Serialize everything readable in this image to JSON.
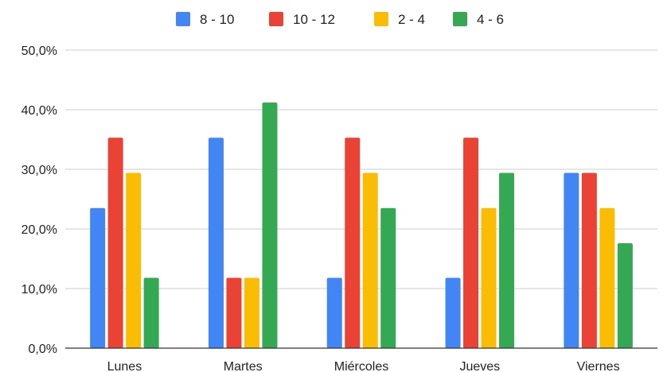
{
  "chart_data": {
    "type": "bar",
    "categories": [
      "Lunes",
      "Martes",
      "Miércoles",
      "Jueves",
      "Viernes"
    ],
    "series": [
      {
        "name": "8 - 10",
        "color": "#4285F4",
        "values": [
          23.5,
          35.3,
          11.8,
          11.8,
          29.4
        ]
      },
      {
        "name": "10 - 12",
        "color": "#EA4335",
        "values": [
          35.3,
          11.8,
          35.3,
          35.3,
          29.4
        ]
      },
      {
        "name": "2 - 4",
        "color": "#FBBC04",
        "values": [
          29.4,
          11.8,
          29.4,
          23.5,
          23.5
        ]
      },
      {
        "name": "4 - 6",
        "color": "#34A853",
        "values": [
          11.8,
          41.2,
          23.5,
          29.4,
          17.6
        ]
      }
    ],
    "ylim": [
      0,
      50
    ],
    "yticks": [
      "0,0%",
      "10,0%",
      "20,0%",
      "30,0%",
      "40,0%",
      "50,0%"
    ],
    "title": "",
    "xlabel": "",
    "ylabel": "",
    "grid": true,
    "legend": "top-center"
  }
}
